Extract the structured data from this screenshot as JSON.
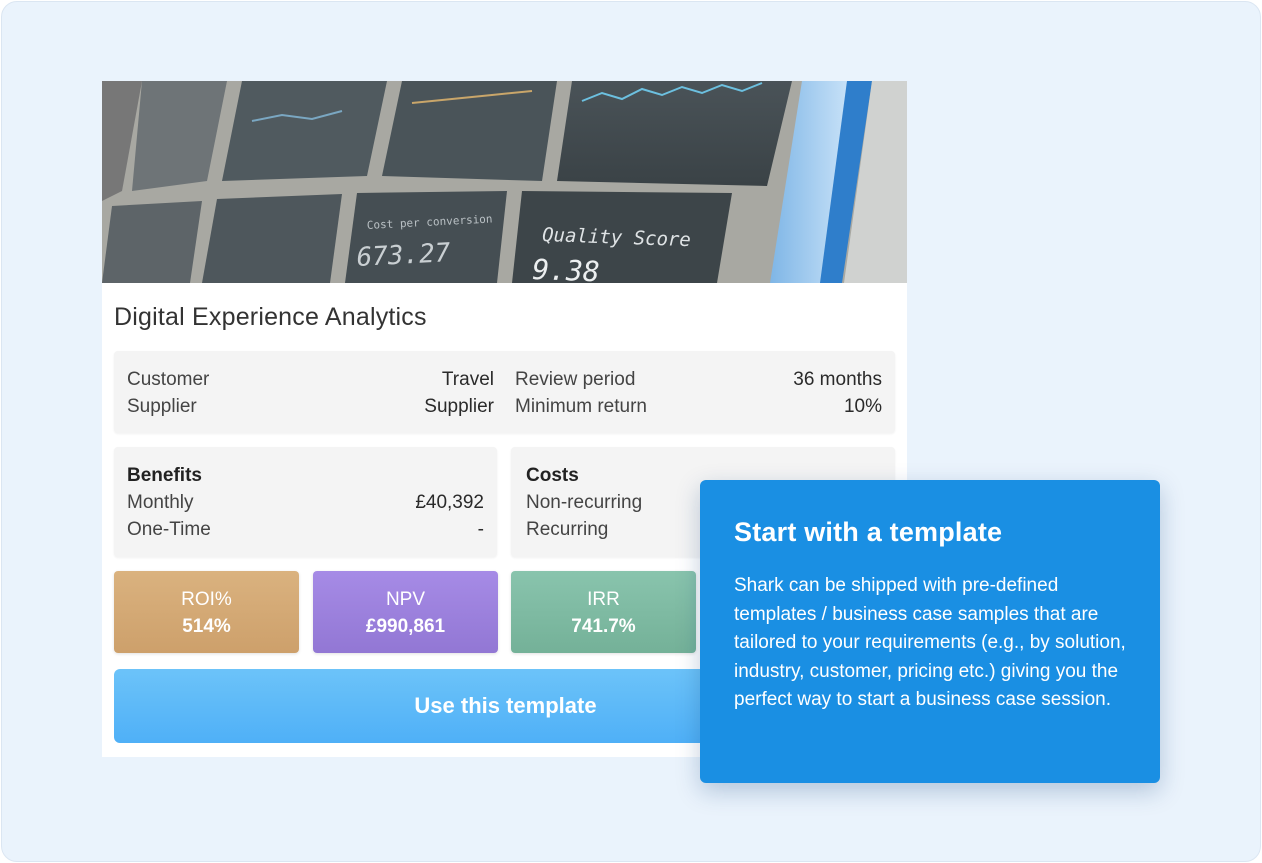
{
  "card": {
    "title": "Digital Experience Analytics",
    "hero_image": {
      "screen_labels": [
        {
          "caption": "Cost per conversion",
          "value": "673.27"
        },
        {
          "caption": "Quality Score",
          "value": "9.38"
        }
      ]
    },
    "info": {
      "rows": [
        {
          "label": "Customer",
          "value": "Travel"
        },
        {
          "label": "Supplier",
          "value": "Supplier"
        }
      ],
      "right_rows": [
        {
          "label": "Review period",
          "value": "36 months"
        },
        {
          "label": "Minimum return",
          "value": "10%"
        }
      ]
    },
    "benefits": {
      "heading": "Benefits",
      "rows": [
        {
          "label": "Monthly",
          "value": "£40,392"
        },
        {
          "label": "One-Time",
          "value": "-"
        }
      ]
    },
    "costs": {
      "heading": "Costs",
      "rows": [
        {
          "label": "Non-recurring"
        },
        {
          "label": "Recurring"
        }
      ]
    },
    "kpis": [
      {
        "label": "ROI%",
        "value": "514%",
        "color": "#d3a874"
      },
      {
        "label": "NPV",
        "value": "£990,861",
        "color": "#9b80dc"
      },
      {
        "label": "IRR",
        "value": "741.7%",
        "color": "#7fb9a3"
      }
    ],
    "cta_label": "Use this template"
  },
  "callout": {
    "title": "Start with a template",
    "body": "Shark can be shipped with pre-defined templates / business case samples that are tailored to your requirements (e.g., by solution, industry, customer, pricing etc.) giving you the perfect way to start a business case session.",
    "color": "#1a8fe3"
  }
}
